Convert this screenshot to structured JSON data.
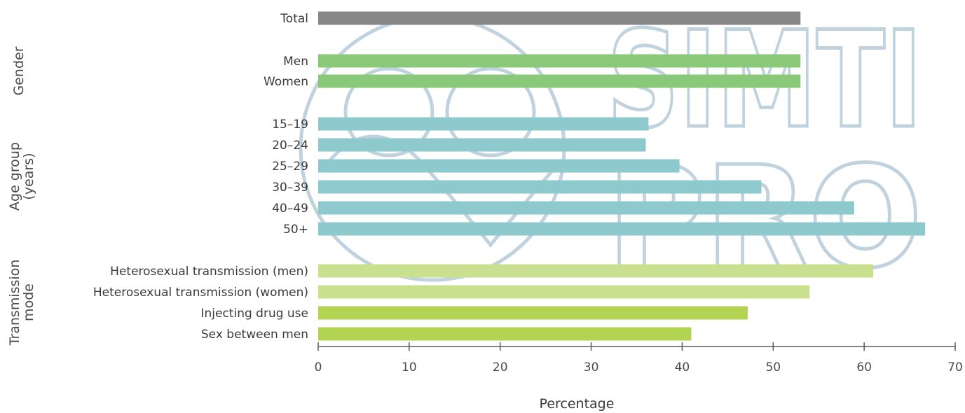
{
  "chart_data": {
    "type": "bar",
    "orientation": "horizontal",
    "xlabel": "Percentage",
    "xlim": [
      0,
      70
    ],
    "xticks": [
      0,
      10,
      20,
      30,
      40,
      50,
      60,
      70
    ],
    "grid": false,
    "groups": [
      {
        "name": "",
        "color": "#878787",
        "items": [
          {
            "label": "Total",
            "value": 53
          }
        ]
      },
      {
        "name": "Gender",
        "color": "#8bc97a",
        "items": [
          {
            "label": "Men",
            "value": 53
          },
          {
            "label": "Women",
            "value": 53
          }
        ]
      },
      {
        "name": "Age group (years)",
        "color": "#8ec9cd",
        "items": [
          {
            "label": "15–19",
            "value": 36.3
          },
          {
            "label": "20–24",
            "value": 36
          },
          {
            "label": "25–29",
            "value": 39.7
          },
          {
            "label": "30–39",
            "value": 48.7
          },
          {
            "label": "40–49",
            "value": 58.9
          },
          {
            "label": "50+",
            "value": 66.7
          }
        ]
      },
      {
        "name": "Transmission mode",
        "color": "#c9e08f",
        "items": [
          {
            "label": "Heterosexual transmission (men)",
            "value": 61
          },
          {
            "label": "Heterosexual transmission (women)",
            "value": 54
          }
        ]
      },
      {
        "name": "",
        "color": "#b2d452",
        "items": [
          {
            "label": "Injecting drug use",
            "value": 47.2
          },
          {
            "label": "Sex between men",
            "value": 41
          }
        ]
      }
    ]
  },
  "watermark": {
    "text_top": "SIMTI",
    "text_bottom": "PRO"
  }
}
